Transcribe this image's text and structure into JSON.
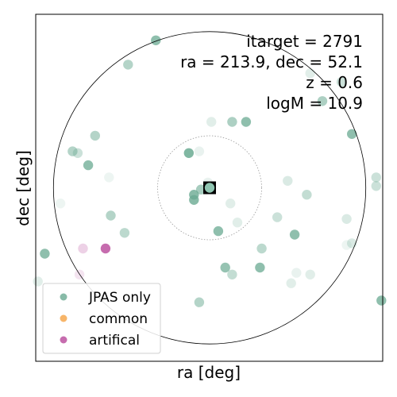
{
  "chart_data": {
    "type": "scatter",
    "xlabel": "ra [deg]",
    "ylabel": "dec [deg]",
    "xlim": [
      -1.0,
      1.0
    ],
    "ylim": [
      -1.0,
      1.0
    ],
    "grid": false,
    "legend_placement": "lower-left",
    "annotations": [
      "itarget = 2791",
      "ra = 213.9, dec = 52.1",
      "z = 0.6",
      "logM = 10.9"
    ],
    "target": {
      "x": 0.0,
      "y": 0.0
    },
    "circles": [
      {
        "style": "solid",
        "radius": 0.9
      },
      {
        "style": "dotted",
        "radius": 0.3
      }
    ],
    "series": [
      {
        "name": "JPAS only",
        "color": "#6aaa92",
        "points": [
          {
            "x": -0.31,
            "y": 0.85,
            "alpha": 0.75
          },
          {
            "x": -0.47,
            "y": 0.71,
            "alpha": 0.5
          },
          {
            "x": 0.58,
            "y": 0.66,
            "alpha": 0.2
          },
          {
            "x": 0.76,
            "y": 0.61,
            "alpha": 0.35
          },
          {
            "x": 0.65,
            "y": 0.5,
            "alpha": 0.55
          },
          {
            "x": 0.01,
            "y": 0.38,
            "alpha": 0.2
          },
          {
            "x": 0.13,
            "y": 0.38,
            "alpha": 0.55
          },
          {
            "x": 0.21,
            "y": 0.38,
            "alpha": 0.75
          },
          {
            "x": 0.82,
            "y": 0.31,
            "alpha": 0.75
          },
          {
            "x": -0.66,
            "y": 0.3,
            "alpha": 0.5
          },
          {
            "x": -0.79,
            "y": 0.21,
            "alpha": 0.5
          },
          {
            "x": -0.76,
            "y": 0.2,
            "alpha": 0.35
          },
          {
            "x": -0.12,
            "y": 0.2,
            "alpha": 0.85
          },
          {
            "x": -0.06,
            "y": 0.21,
            "alpha": 0.15
          },
          {
            "x": -0.7,
            "y": 0.13,
            "alpha": 0.75
          },
          {
            "x": -0.58,
            "y": 0.06,
            "alpha": 0.12
          },
          {
            "x": 0.45,
            "y": 0.04,
            "alpha": 0.25
          },
          {
            "x": 0.96,
            "y": 0.06,
            "alpha": 0.35
          },
          {
            "x": 0.96,
            "y": 0.01,
            "alpha": 0.35
          },
          {
            "x": -0.01,
            "y": 0.03,
            "alpha": 0.15
          },
          {
            "x": -0.05,
            "y": -0.01,
            "alpha": 0.6
          },
          {
            "x": -0.09,
            "y": -0.04,
            "alpha": 0.8
          },
          {
            "x": -0.09,
            "y": -0.07,
            "alpha": 0.8
          },
          {
            "x": 0.0,
            "y": 0.0,
            "alpha": 0.85
          },
          {
            "x": 0.56,
            "y": -0.04,
            "alpha": 0.4
          },
          {
            "x": 0.12,
            "y": -0.09,
            "alpha": 0.2
          },
          {
            "x": -0.86,
            "y": -0.09,
            "alpha": 0.12
          },
          {
            "x": -0.57,
            "y": -0.16,
            "alpha": 0.5
          },
          {
            "x": 0.39,
            "y": -0.17,
            "alpha": 0.35
          },
          {
            "x": 0.79,
            "y": -0.18,
            "alpha": 0.25
          },
          {
            "x": 0.16,
            "y": -0.2,
            "alpha": 0.2
          },
          {
            "x": 0.05,
            "y": -0.25,
            "alpha": 0.75
          },
          {
            "x": -0.49,
            "y": -0.26,
            "alpha": 0.45
          },
          {
            "x": 0.49,
            "y": -0.27,
            "alpha": 0.75
          },
          {
            "x": 0.82,
            "y": -0.32,
            "alpha": 0.25
          },
          {
            "x": 0.79,
            "y": -0.33,
            "alpha": 0.12
          },
          {
            "x": 0.3,
            "y": -0.35,
            "alpha": 0.45
          },
          {
            "x": -0.95,
            "y": -0.38,
            "alpha": 0.75
          },
          {
            "x": 0.09,
            "y": -0.46,
            "alpha": 0.7
          },
          {
            "x": 0.29,
            "y": -0.46,
            "alpha": 0.75
          },
          {
            "x": 0.13,
            "y": -0.5,
            "alpha": 0.4
          },
          {
            "x": 0.5,
            "y": -0.49,
            "alpha": 0.15
          },
          {
            "x": 0.58,
            "y": -0.5,
            "alpha": 0.2
          },
          {
            "x": 0.47,
            "y": -0.55,
            "alpha": 0.2
          },
          {
            "x": -0.99,
            "y": -0.54,
            "alpha": 0.2
          },
          {
            "x": -0.06,
            "y": -0.66,
            "alpha": 0.5
          },
          {
            "x": 0.99,
            "y": -0.65,
            "alpha": 0.75
          }
        ]
      },
      {
        "name": "common",
        "color": "#f5a343",
        "points": []
      },
      {
        "name": "artifical",
        "color": "#b8479a",
        "points": [
          {
            "x": -0.6,
            "y": -0.35,
            "alpha": 0.8
          },
          {
            "x": -0.73,
            "y": -0.35,
            "alpha": 0.25
          },
          {
            "x": -0.75,
            "y": -0.5,
            "alpha": 0.15
          }
        ]
      }
    ]
  }
}
